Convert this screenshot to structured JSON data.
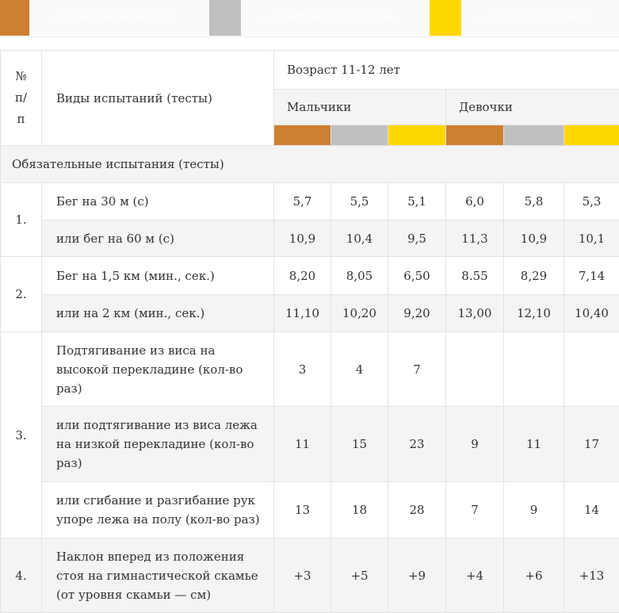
{
  "legend": {
    "colors": {
      "bronze": "#cd7f32",
      "silver": "#c0c0c0",
      "gold": "#ffd700"
    },
    "bronze": "— бронзовый значок",
    "silver": "— серебряный значок",
    "gold": "— золотой значок"
  },
  "header": {
    "num": "№ п/п",
    "tests": "Виды испытаний (тесты)",
    "age": "Возраст 11-12 лет",
    "boys": "Мальчики",
    "girls": "Девочки"
  },
  "section": "Обязательные испытания (тесты)",
  "groups": [
    {
      "num": "1.",
      "rows": [
        {
          "name": "Бег на 30 м (с)",
          "values": [
            "5,7",
            "5,5",
            "5,1",
            "6,0",
            "5,8",
            "5,3"
          ]
        },
        {
          "name": "или бег на 60 м (с)",
          "values": [
            "10,9",
            "10,4",
            "9,5",
            "11,3",
            "10,9",
            "10,1"
          ]
        }
      ]
    },
    {
      "num": "2.",
      "rows": [
        {
          "name": "Бег на 1,5 км (мин., сек.)",
          "values": [
            "8,20",
            "8,05",
            "6,50",
            "8.55",
            "8,29",
            "7,14"
          ]
        },
        {
          "name": "или на 2 км (мин., сек.)",
          "values": [
            "11,10",
            "10,20",
            "9,20",
            "13,00",
            "12,10",
            "10,40"
          ]
        }
      ]
    },
    {
      "num": "3.",
      "rows": [
        {
          "name": "Подтягивание из виса на высокой перекладине (кол-во раз)",
          "values": [
            "3",
            "4",
            "7",
            "",
            "",
            ""
          ]
        },
        {
          "name": "или подтягивание из виса лежа на низкой перекладине (кол-во раз)",
          "values": [
            "11",
            "15",
            "23",
            "9",
            "11",
            "17"
          ]
        },
        {
          "name": "или сгибание и разгибание рук упоре лежа на полу (кол-во раз)",
          "values": [
            "13",
            "18",
            "28",
            "7",
            "9",
            "14"
          ]
        }
      ]
    },
    {
      "num": "4.",
      "rows": [
        {
          "name": "Наклон вперед из положения стоя на гимнастической скамье (от уровня скамьи — см)",
          "values": [
            "+3",
            "+5",
            "+9",
            "+4",
            "+6",
            "+13"
          ]
        }
      ]
    }
  ]
}
